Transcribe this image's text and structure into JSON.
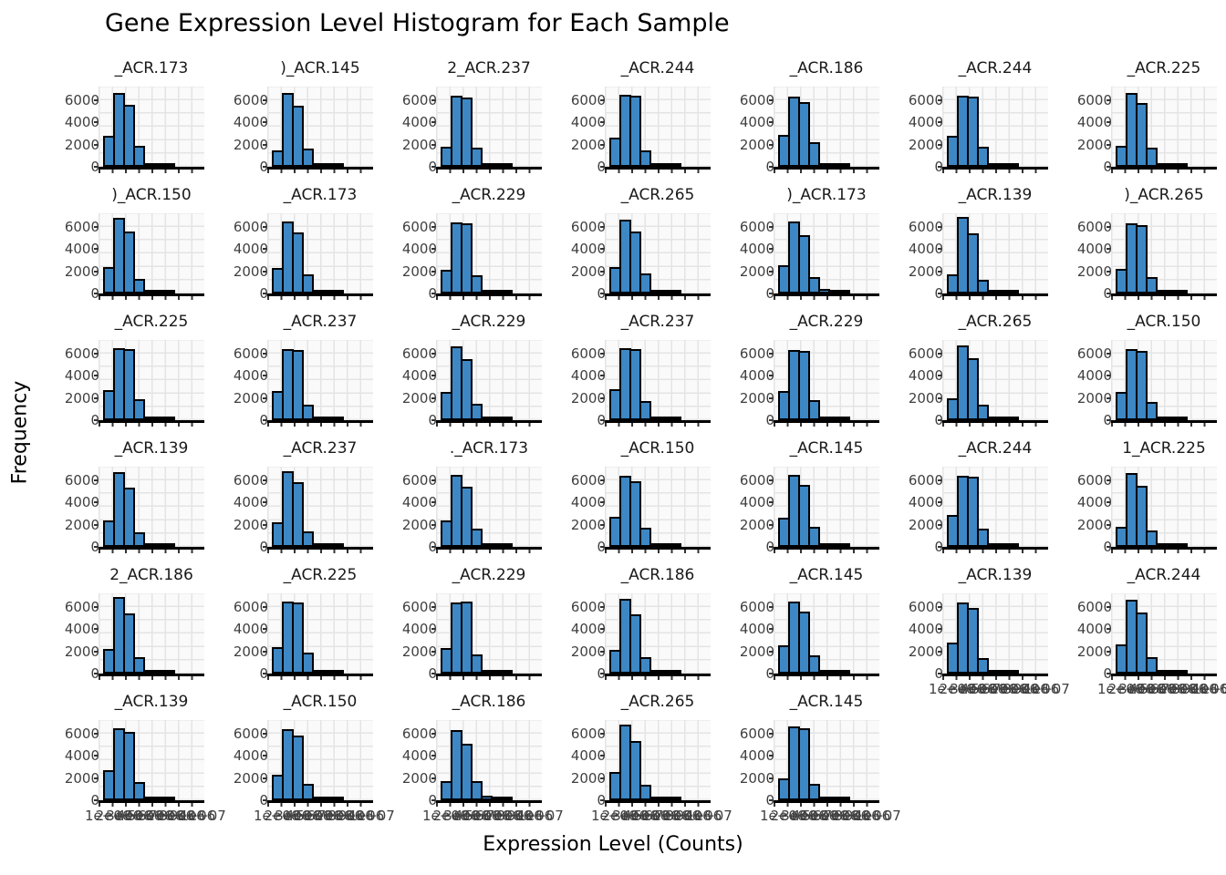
{
  "chart_data": {
    "type": "histogram",
    "title": "Gene Expression Level Histogram for Each Sample",
    "xlabel": "Expression Level (Counts)",
    "ylabel": "Frequency",
    "facet_grid": {
      "rows": 6,
      "cols": 7,
      "count": 40
    },
    "y_ticks": [
      0,
      2000,
      4000,
      6000
    ],
    "ylim": [
      0,
      7200
    ],
    "x_tick_labels": [
      "1e+06",
      "2e+06",
      "3e+06",
      "4e+06",
      "5e+06",
      "6e+06",
      "7e+06",
      "8e+06",
      "9e+06",
      "1e+07"
    ],
    "grid": true,
    "legend": "none",
    "bar_fill": "#3d87c4",
    "bar_edge": "#000000",
    "grid_color": "#e4e4e4",
    "facets": [
      {
        "title": "_ACR.173",
        "values": [
          2800,
          6600,
          5600,
          1900,
          300,
          120,
          40
        ]
      },
      {
        "title": ")_ACR.145",
        "values": [
          1500,
          6600,
          5500,
          1600,
          350,
          100,
          40
        ]
      },
      {
        "title": "2_ACR.237",
        "values": [
          1800,
          6400,
          6200,
          1700,
          250,
          80,
          30
        ]
      },
      {
        "title": "_ACR.244",
        "values": [
          2600,
          6500,
          6400,
          1500,
          200,
          60,
          30
        ]
      },
      {
        "title": "_ACR.186",
        "values": [
          2900,
          6300,
          5800,
          2200,
          350,
          120,
          50
        ]
      },
      {
        "title": "_ACR.244",
        "values": [
          2800,
          6400,
          6300,
          1800,
          250,
          90,
          40
        ]
      },
      {
        "title": "_ACR.225",
        "values": [
          1900,
          6600,
          5700,
          1700,
          300,
          100,
          40
        ]
      },
      {
        "title": ")_ACR.150",
        "values": [
          2400,
          6800,
          5600,
          1300,
          250,
          80,
          30
        ]
      },
      {
        "title": "_ACR.173",
        "values": [
          2300,
          6500,
          5500,
          1700,
          300,
          100,
          40
        ]
      },
      {
        "title": "_ACR.229",
        "values": [
          2100,
          6400,
          6300,
          1600,
          250,
          90,
          30
        ]
      },
      {
        "title": "_ACR.265",
        "values": [
          2400,
          6600,
          5600,
          1800,
          350,
          120,
          40
        ]
      },
      {
        "title": ")_ACR.173",
        "values": [
          2500,
          6500,
          5200,
          1500,
          400,
          130,
          50
        ]
      },
      {
        "title": "_ACR.139",
        "values": [
          1700,
          6900,
          5400,
          1200,
          250,
          80,
          30
        ]
      },
      {
        "title": ")_ACR.265",
        "values": [
          2200,
          6300,
          6100,
          1500,
          300,
          100,
          40
        ]
      },
      {
        "title": "_ACR.225",
        "values": [
          2700,
          6500,
          6400,
          1900,
          300,
          100,
          40
        ]
      },
      {
        "title": "_ACR.237",
        "values": [
          2600,
          6400,
          6300,
          1400,
          250,
          80,
          30
        ]
      },
      {
        "title": "_ACR.229",
        "values": [
          2500,
          6600,
          5500,
          1500,
          300,
          100,
          40
        ]
      },
      {
        "title": "_ACR.237",
        "values": [
          2800,
          6500,
          6400,
          1700,
          250,
          90,
          40
        ]
      },
      {
        "title": "_ACR.229",
        "values": [
          2600,
          6300,
          6200,
          1800,
          300,
          110,
          40
        ]
      },
      {
        "title": "_ACR.265",
        "values": [
          2000,
          6700,
          5600,
          1400,
          300,
          100,
          40
        ]
      },
      {
        "title": "_ACR.150",
        "values": [
          2500,
          6400,
          6200,
          1600,
          250,
          90,
          30
        ]
      },
      {
        "title": "_ACR.139",
        "values": [
          2400,
          6700,
          5300,
          1300,
          300,
          100,
          40
        ]
      },
      {
        "title": "_ACR.237",
        "values": [
          2200,
          6800,
          5800,
          1400,
          250,
          90,
          30
        ]
      },
      {
        "title": "._ACR.173",
        "values": [
          2400,
          6500,
          5400,
          1600,
          350,
          110,
          40
        ]
      },
      {
        "title": "_ACR.150",
        "values": [
          2700,
          6400,
          5900,
          1700,
          300,
          100,
          40
        ]
      },
      {
        "title": "_ACR.145",
        "values": [
          2600,
          6500,
          5600,
          1800,
          300,
          100,
          40
        ]
      },
      {
        "title": "_ACR.244",
        "values": [
          2900,
          6400,
          6300,
          1600,
          250,
          90,
          40
        ]
      },
      {
        "title": "1_ACR.225",
        "values": [
          1800,
          6600,
          5500,
          1500,
          300,
          100,
          40
        ]
      },
      {
        "title": "2_ACR.186",
        "values": [
          2200,
          6900,
          5400,
          1500,
          250,
          90,
          40
        ]
      },
      {
        "title": "_ACR.225",
        "values": [
          2400,
          6500,
          6400,
          1900,
          300,
          100,
          40
        ]
      },
      {
        "title": "_ACR.229",
        "values": [
          2300,
          6400,
          6500,
          1700,
          250,
          90,
          30
        ]
      },
      {
        "title": "_ACR.186",
        "values": [
          2100,
          6700,
          5300,
          1500,
          300,
          110,
          40
        ]
      },
      {
        "title": "_ACR.145",
        "values": [
          2500,
          6500,
          5600,
          1600,
          300,
          100,
          40
        ]
      },
      {
        "title": "_ACR.139",
        "values": [
          2800,
          6400,
          5900,
          1400,
          250,
          90,
          40
        ]
      },
      {
        "title": "_ACR.244",
        "values": [
          2600,
          6600,
          5500,
          1500,
          300,
          100,
          40
        ]
      },
      {
        "title": "_ACR.139",
        "values": [
          2700,
          6500,
          6100,
          1600,
          250,
          90,
          40
        ]
      },
      {
        "title": "_ACR.150",
        "values": [
          2300,
          6400,
          5800,
          1500,
          300,
          100,
          40
        ]
      },
      {
        "title": "_ACR.186",
        "values": [
          1700,
          6300,
          5100,
          1700,
          400,
          130,
          50
        ]
      },
      {
        "title": "_ACR.265",
        "values": [
          2500,
          6800,
          5300,
          1400,
          250,
          90,
          40
        ]
      },
      {
        "title": "_ACR.145",
        "values": [
          2000,
          6600,
          6500,
          1500,
          250,
          90,
          30
        ]
      }
    ]
  }
}
